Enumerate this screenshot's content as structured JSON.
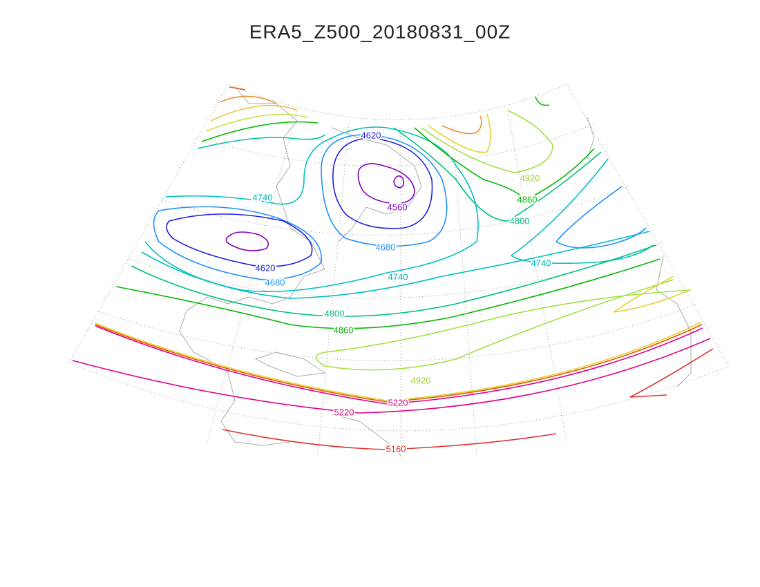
{
  "title": "ERA5_Z500_20180831_00Z",
  "contour_labels": [
    4620,
    4740,
    4920,
    4860,
    4560,
    4800,
    4620,
    4680,
    4740,
    4680,
    4740,
    4800,
    4860,
    4920,
    5220,
    5220,
    5160
  ]
}
